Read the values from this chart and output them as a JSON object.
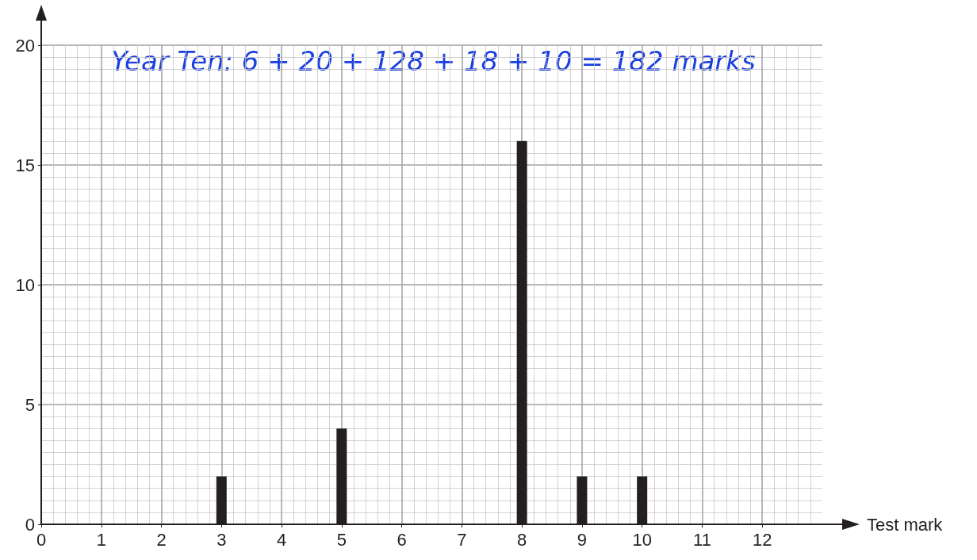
{
  "chart_data": {
    "type": "bar",
    "x": [
      3,
      5,
      8,
      9,
      10
    ],
    "values": [
      2,
      4,
      16,
      2,
      2
    ],
    "color": "#231f20",
    "xlabel": "Test mark",
    "xlim": [
      0,
      13
    ],
    "xticks": [
      0,
      1,
      2,
      3,
      4,
      5,
      6,
      7,
      8,
      9,
      10,
      11,
      12
    ],
    "ylim": [
      0,
      20
    ],
    "yticks": [
      0,
      5,
      10,
      15,
      20
    ],
    "grid": true,
    "annotations": [
      "Year Ten: 6 + 20 + 128 + 18 + 10 = 182 marks"
    ]
  }
}
